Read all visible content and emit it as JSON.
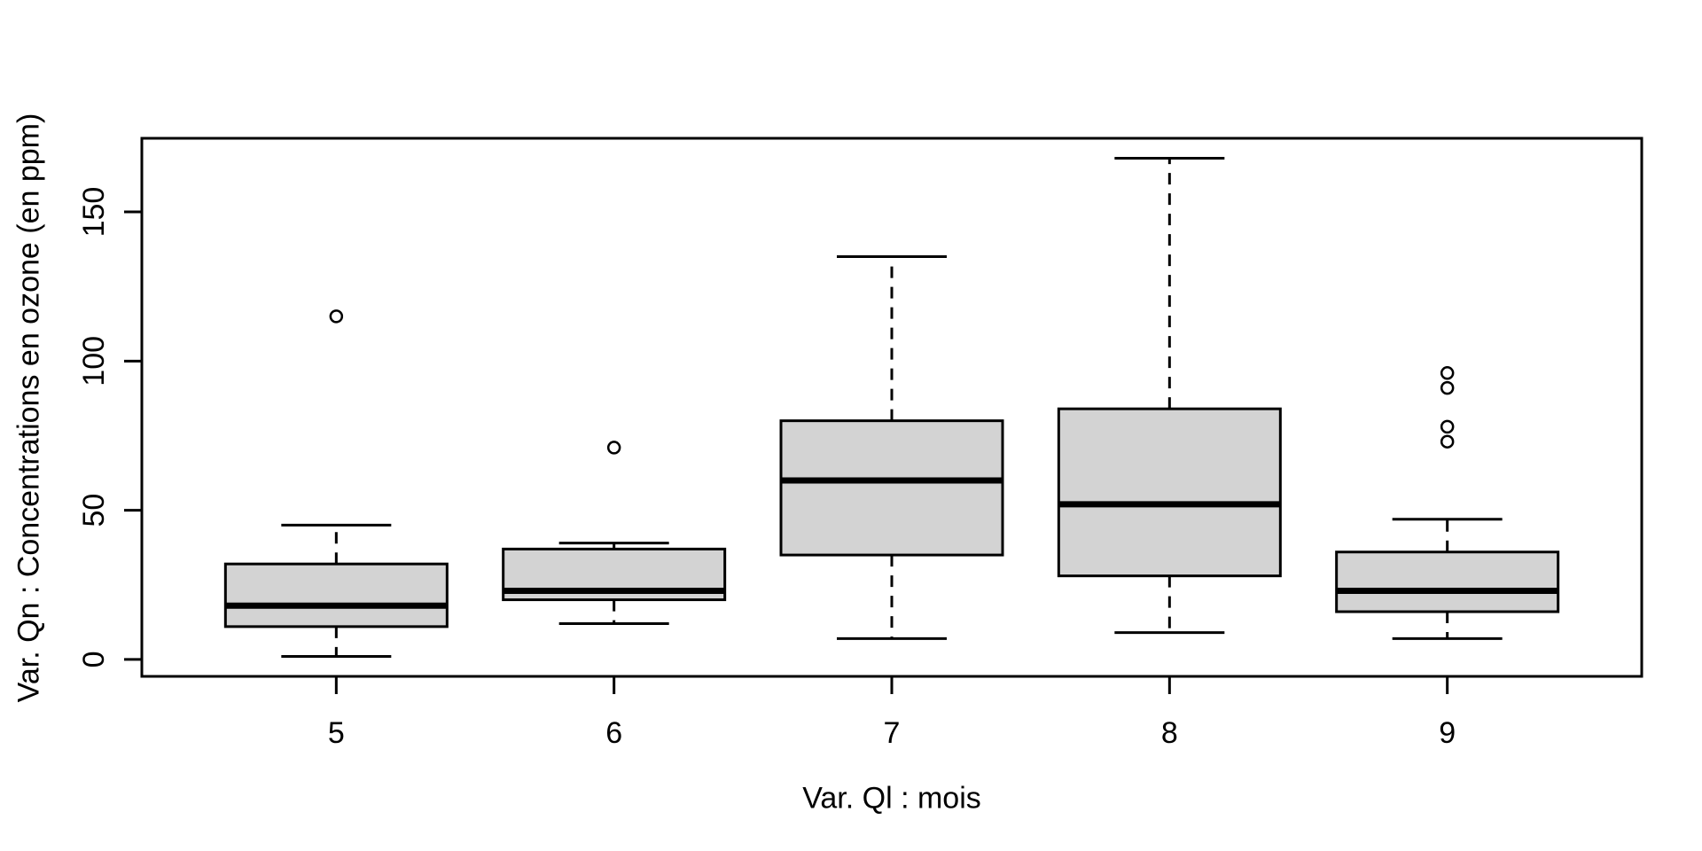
{
  "figure": {
    "background": "#ffffff"
  },
  "chart_data": {
    "type": "boxplot",
    "title": "",
    "xlabel": "Var. Ql : mois",
    "ylabel": "Var. Qn : Concentrations en ozone (en ppm)",
    "categories": [
      "5",
      "6",
      "7",
      "8",
      "9"
    ],
    "y_ticks": [
      0,
      50,
      100,
      150
    ],
    "ylim": [
      -5.68,
      174.68
    ],
    "xlim_units": [
      0.3,
      5.7
    ],
    "grid": false,
    "legend": false,
    "colors": {
      "box_fill": "#d3d3d3",
      "line": "#000000",
      "background": "#ffffff"
    },
    "series": [
      {
        "category": "5",
        "whisker_low": 1,
        "q1": 11,
        "median": 18,
        "q3": 32,
        "whisker_high": 45,
        "outliers": [
          115
        ]
      },
      {
        "category": "6",
        "whisker_low": 12,
        "q1": 20,
        "median": 23,
        "q3": 37,
        "whisker_high": 39,
        "outliers": [
          71
        ]
      },
      {
        "category": "7",
        "whisker_low": 7,
        "q1": 35,
        "median": 60,
        "q3": 80,
        "whisker_high": 135,
        "outliers": []
      },
      {
        "category": "8",
        "whisker_low": 9,
        "q1": 28,
        "median": 52,
        "q3": 84,
        "whisker_high": 168,
        "outliers": []
      },
      {
        "category": "9",
        "whisker_low": 7,
        "q1": 16,
        "median": 23,
        "q3": 36,
        "whisker_high": 47,
        "outliers": [
          73,
          78,
          91,
          96
        ]
      }
    ]
  }
}
